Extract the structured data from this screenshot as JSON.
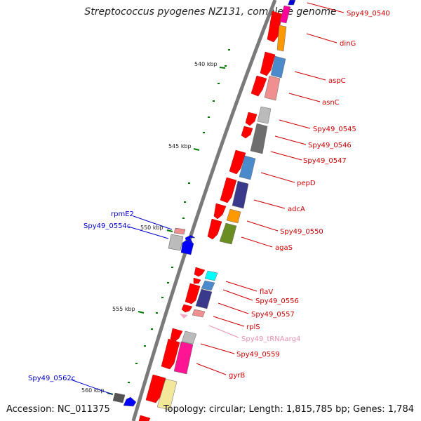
{
  "title": "Streptococcus pyogenes NZ131, complete genome",
  "accession": "Accession: NC_011375",
  "topology": "Topology: circular; Length: 1,815,785 bp; Genes: 1,784",
  "kbp_labels": [
    "540 kbp",
    "545 kbp",
    "550 kbp",
    "555 kbp",
    "560 kbp"
  ],
  "colors": {
    "forward_label": "#cc0000",
    "reverse_label": "#0000cc",
    "trna_label": "#e890b0",
    "backbone": "#7a7a7a",
    "tick": "#007700"
  },
  "gene_labels": [
    "Spy49_0540",
    "dinG",
    "aspC",
    "asnC",
    "Spy49_0545",
    "Spy49_0546",
    "Spy49_0547",
    "pepD",
    "adcA",
    "Spy49_0550",
    "agaS",
    "flaV",
    "Spy49_0556",
    "Spy49_0557",
    "rplS",
    "Spy49_tRNAarg4",
    "Spy49_0559",
    "gyrB",
    "rpmE2",
    "Spy49_0554c",
    "Spy49_0562c"
  ]
}
